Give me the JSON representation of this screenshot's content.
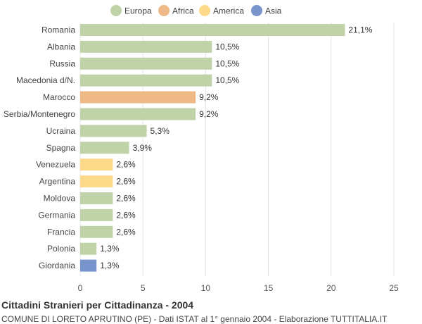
{
  "chart_data": {
    "type": "bar",
    "orientation": "horizontal",
    "title": "Cittadini Stranieri per Cittadinanza - 2004",
    "subtitle": "COMUNE DI LORETO APRUTINO (PE) - Dati ISTAT al 1° gennaio 2004 - Elaborazione TUTTITALIA.IT",
    "xlim": [
      0,
      25
    ],
    "xticks": [
      0,
      5,
      10,
      15,
      20,
      25
    ],
    "grid": true,
    "legend_position": "top",
    "legend": [
      {
        "name": "Europa",
        "color": "#c0d2a8"
      },
      {
        "name": "Africa",
        "color": "#efb987"
      },
      {
        "name": "America",
        "color": "#fdd98a"
      },
      {
        "name": "Asia",
        "color": "#7894cc"
      }
    ],
    "categories": [
      "Romania",
      "Albania",
      "Russia",
      "Macedonia d/N.",
      "Marocco",
      "Serbia/Montenegro",
      "Ucraina",
      "Spagna",
      "Venezuela",
      "Argentina",
      "Moldova",
      "Germania",
      "Francia",
      "Polonia",
      "Giordania"
    ],
    "values": [
      21.1,
      10.5,
      10.5,
      10.5,
      9.2,
      9.2,
      5.3,
      3.9,
      2.6,
      2.6,
      2.6,
      2.6,
      2.6,
      1.3,
      1.3
    ],
    "value_labels": [
      "21,1%",
      "10,5%",
      "10,5%",
      "10,5%",
      "9,2%",
      "9,2%",
      "5,3%",
      "3,9%",
      "2,6%",
      "2,6%",
      "2,6%",
      "2,6%",
      "2,6%",
      "1,3%",
      "1,3%"
    ],
    "groups": [
      "Europa",
      "Europa",
      "Europa",
      "Europa",
      "Africa",
      "Europa",
      "Europa",
      "Europa",
      "America",
      "America",
      "Europa",
      "Europa",
      "Europa",
      "Europa",
      "Asia"
    ]
  }
}
